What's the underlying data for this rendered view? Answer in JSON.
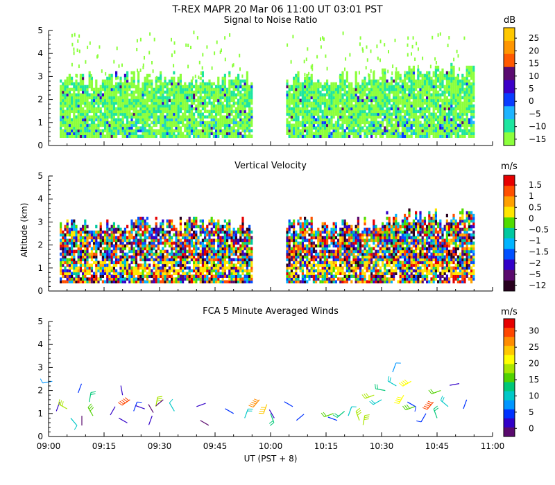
{
  "header": {
    "title": "T-REX   MAPR 20 Mar 06   11:00 UT   03:01   PST"
  },
  "axes": {
    "x_label": "UT   (PST + 8)",
    "y_label": "Altitude (km)",
    "x_ticks": [
      "09:00",
      "09:15",
      "09:30",
      "09:45",
      "10:00",
      "10:15",
      "10:30",
      "10:45",
      "11:00"
    ]
  },
  "chart_data": [
    {
      "type": "heatmap",
      "title": "Signal to Noise Ratio",
      "units": "dB",
      "xlim": [
        540,
        660
      ],
      "ylim": [
        0,
        5
      ],
      "y_ticks": [
        "0",
        "1",
        "2",
        "3",
        "4",
        "5"
      ],
      "colorbar_labels": [
        "25",
        "20",
        "15",
        "10",
        "5",
        "0",
        "−5",
        "−10",
        "−15"
      ],
      "colorbar_colors": [
        "#ffc800",
        "#ff9600",
        "#ff5a00",
        "#5a0a70",
        "#3c00c8",
        "#0a3cff",
        "#1eb4ff",
        "#1ee6a0",
        "#8cff3c"
      ],
      "data_gap_minutes": [
        595,
        604
      ]
    },
    {
      "type": "heatmap",
      "title": "Vertical Velocity",
      "units": "m/s",
      "xlim": [
        540,
        660
      ],
      "ylim": [
        0,
        5
      ],
      "y_ticks": [
        "0",
        "1",
        "2",
        "3",
        "4",
        "5"
      ],
      "colorbar_labels": [
        "1.5",
        "1",
        "0.5",
        "0",
        "−0.5",
        "−1",
        "−1.5",
        "−2",
        "−5",
        "−12"
      ],
      "colorbar_colors": [
        "#e60000",
        "#ff5000",
        "#ffa000",
        "#ffe600",
        "#50dc00",
        "#00c8a0",
        "#00b4ff",
        "#0050ff",
        "#3200c8",
        "#5a0a6e",
        "#28001e"
      ],
      "data_gap_minutes": [
        595,
        604
      ]
    },
    {
      "type": "scatter",
      "title": "FCA 5 Minute Averaged Winds",
      "units": "m/s",
      "xlim": [
        540,
        660
      ],
      "ylim": [
        0,
        5
      ],
      "y_ticks": [
        "0",
        "1",
        "2",
        "3",
        "4",
        "5"
      ],
      "colorbar_labels": [
        "30",
        "25",
        "20",
        "15",
        "10",
        "5",
        "0"
      ],
      "colorbar_colors": [
        "#e60000",
        "#ff4600",
        "#ff8c00",
        "#ffc800",
        "#ffff00",
        "#aae600",
        "#50d200",
        "#00c878",
        "#00c8c8",
        "#0096ff",
        "#0032ff",
        "#3200c8",
        "#5a0a6e"
      ],
      "wind_barbs": [
        {
          "t": 541,
          "z": 2.4,
          "speed": 8,
          "dir": 260
        },
        {
          "t": 543,
          "z": 1.5,
          "speed": 3,
          "dir": 200
        },
        {
          "t": 545,
          "z": 1.2,
          "speed": 18,
          "dir": 300
        },
        {
          "t": 546,
          "z": 0.8,
          "speed": 9,
          "dir": 140
        },
        {
          "t": 548,
          "z": 1.9,
          "speed": 4,
          "dir": 20
        },
        {
          "t": 549,
          "z": 0.9,
          "speed": 1,
          "dir": 180
        },
        {
          "t": 551,
          "z": 1.5,
          "speed": 12,
          "dir": 10
        },
        {
          "t": 552,
          "z": 0.9,
          "speed": 16,
          "dir": 330
        },
        {
          "t": 558,
          "z": 1.3,
          "speed": 2,
          "dir": 210
        },
        {
          "t": 559,
          "z": 0.8,
          "speed": 2,
          "dir": 120
        },
        {
          "t": 560,
          "z": 1.8,
          "speed": 3,
          "dir": 350
        },
        {
          "t": 562,
          "z": 1.6,
          "speed": 28,
          "dir": 235
        },
        {
          "t": 563,
          "z": 1.1,
          "speed": 5,
          "dir": 20
        },
        {
          "t": 566,
          "z": 1.2,
          "speed": 2,
          "dir": 290
        },
        {
          "t": 567,
          "z": 1.4,
          "speed": 1,
          "dir": 150
        },
        {
          "t": 568,
          "z": 0.9,
          "speed": 3,
          "dir": 200
        },
        {
          "t": 569,
          "z": 1.3,
          "speed": 18,
          "dir": 10
        },
        {
          "t": 571,
          "z": 1.6,
          "speed": 1,
          "dir": 230
        },
        {
          "t": 574,
          "z": 1.1,
          "speed": 9,
          "dir": 330
        },
        {
          "t": 580,
          "z": 1.3,
          "speed": 2,
          "dir": 70
        },
        {
          "t": 581,
          "z": 0.7,
          "speed": 1,
          "dir": 120
        },
        {
          "t": 590,
          "z": 1.0,
          "speed": 4,
          "dir": 300
        },
        {
          "t": 593,
          "z": 0.8,
          "speed": 11,
          "dir": 20
        },
        {
          "t": 597,
          "z": 1.6,
          "speed": 26,
          "dir": 220
        },
        {
          "t": 599,
          "z": 1.4,
          "speed": 22,
          "dir": 200
        },
        {
          "t": 600,
          "z": 1.0,
          "speed": 12,
          "dir": 160
        },
        {
          "t": 601,
          "z": 0.8,
          "speed": 3,
          "dir": 330
        },
        {
          "t": 606,
          "z": 1.3,
          "speed": 4,
          "dir": 300
        },
        {
          "t": 607,
          "z": 0.7,
          "speed": 4,
          "dir": 50
        },
        {
          "t": 617,
          "z": 1.0,
          "speed": 14,
          "dir": 250
        },
        {
          "t": 618,
          "z": 0.7,
          "speed": 4,
          "dir": 290
        },
        {
          "t": 620,
          "z": 1.1,
          "speed": 12,
          "dir": 230
        },
        {
          "t": 621,
          "z": 0.9,
          "speed": 9,
          "dir": 20
        },
        {
          "t": 624,
          "z": 0.7,
          "speed": 18,
          "dir": 340
        },
        {
          "t": 625,
          "z": 0.5,
          "speed": 18,
          "dir": 10
        },
        {
          "t": 628,
          "z": 1.8,
          "speed": 18,
          "dir": 250
        },
        {
          "t": 630,
          "z": 1.6,
          "speed": 10,
          "dir": 240
        },
        {
          "t": 631,
          "z": 2.0,
          "speed": 12,
          "dir": 280
        },
        {
          "t": 633,
          "z": 2.8,
          "speed": 8,
          "dir": 20
        },
        {
          "t": 634,
          "z": 2.2,
          "speed": 10,
          "dir": 300
        },
        {
          "t": 636,
          "z": 1.8,
          "speed": 20,
          "dir": 210
        },
        {
          "t": 637,
          "z": 1.5,
          "speed": 6,
          "dir": 120
        },
        {
          "t": 638,
          "z": 2.4,
          "speed": 20,
          "dir": 240
        },
        {
          "t": 639,
          "z": 1.3,
          "speed": 15,
          "dir": 250
        },
        {
          "t": 642,
          "z": 1.0,
          "speed": 5,
          "dir": 210
        },
        {
          "t": 644,
          "z": 1.5,
          "speed": 28,
          "dir": 220
        },
        {
          "t": 645,
          "z": 0.8,
          "speed": 12,
          "dir": 340
        },
        {
          "t": 646,
          "z": 2.0,
          "speed": 14,
          "dir": 250
        },
        {
          "t": 648,
          "z": 1.3,
          "speed": 10,
          "dir": 310
        },
        {
          "t": 651,
          "z": 2.3,
          "speed": 3,
          "dir": 260
        },
        {
          "t": 653,
          "z": 1.6,
          "speed": 4,
          "dir": 200
        }
      ]
    }
  ]
}
